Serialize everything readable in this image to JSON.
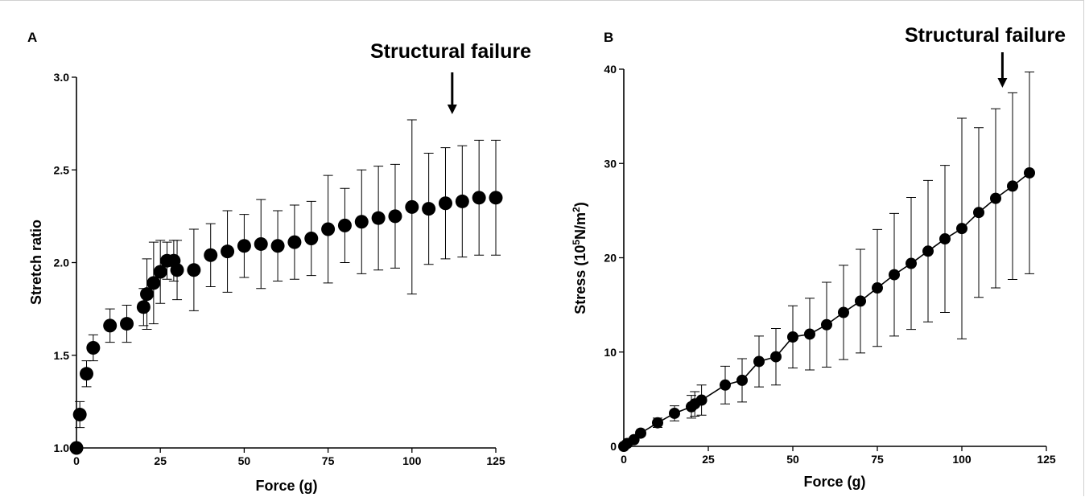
{
  "chart_data": [
    {
      "type": "scatter",
      "panel_label": "A",
      "xlabel": "Force (g)",
      "ylabel": "Stretch ratio",
      "xlim": [
        0,
        125
      ],
      "ylim": [
        1.0,
        3.0
      ],
      "xticks": [
        "0",
        "25",
        "50",
        "75",
        "100",
        "125"
      ],
      "yticks": [
        "1.0",
        "1.5",
        "2.0",
        "2.5",
        "3.0"
      ],
      "annotation": {
        "text": "Structural failure",
        "x": 112
      },
      "connect_points": false,
      "series": [
        {
          "x": [
            0,
            1,
            3,
            5,
            10,
            15,
            20,
            21,
            23,
            25,
            27,
            29,
            30,
            35,
            40,
            45,
            50,
            55,
            60,
            65,
            70,
            75,
            80,
            85,
            90,
            95,
            100,
            105,
            110,
            115,
            120,
            125
          ],
          "y": [
            1.0,
            1.18,
            1.4,
            1.54,
            1.66,
            1.67,
            1.76,
            1.83,
            1.89,
            1.95,
            2.01,
            2.01,
            1.96,
            1.96,
            2.04,
            2.06,
            2.09,
            2.1,
            2.09,
            2.11,
            2.13,
            2.18,
            2.2,
            2.22,
            2.24,
            2.25,
            2.3,
            2.29,
            2.32,
            2.33,
            2.35,
            2.35
          ],
          "err": [
            0,
            0.07,
            0.07,
            0.07,
            0.09,
            0.1,
            0.1,
            0.19,
            0.22,
            0.17,
            0.1,
            0.11,
            0.16,
            0.22,
            0.17,
            0.22,
            0.17,
            0.24,
            0.19,
            0.2,
            0.2,
            0.29,
            0.2,
            0.28,
            0.28,
            0.28,
            0.47,
            0.3,
            0.3,
            0.3,
            0.31,
            0.31
          ]
        }
      ]
    },
    {
      "type": "line",
      "panel_label": "B",
      "xlabel": "Force (g)",
      "ylabel_pre": "Stress (10",
      "ylabel_sup1": "5",
      "ylabel_mid": "N/m",
      "ylabel_sup2": "2",
      "ylabel_post": ")",
      "xlim": [
        0,
        125
      ],
      "ylim": [
        0,
        40
      ],
      "xticks": [
        "0",
        "25",
        "50",
        "75",
        "100",
        "125"
      ],
      "yticks": [
        "0",
        "10",
        "20",
        "30",
        "40"
      ],
      "annotation": {
        "text": "Structural failure",
        "x": 112
      },
      "connect_points": true,
      "series": [
        {
          "x": [
            0,
            1,
            3,
            5,
            10,
            15,
            20,
            21,
            23,
            30,
            35,
            40,
            45,
            50,
            55,
            60,
            65,
            70,
            75,
            80,
            85,
            90,
            95,
            100,
            105,
            110,
            115,
            120
          ],
          "y": [
            0,
            0.3,
            0.7,
            1.4,
            2.5,
            3.5,
            4.2,
            4.5,
            4.9,
            6.5,
            7.0,
            9.0,
            9.5,
            11.6,
            11.9,
            12.9,
            14.2,
            15.4,
            16.8,
            18.2,
            19.4,
            20.7,
            22.0,
            23.1,
            24.8,
            26.3,
            27.6,
            29.0
          ],
          "err": [
            0,
            0,
            0,
            0.3,
            0.5,
            0.8,
            1.2,
            1.3,
            1.6,
            2.0,
            2.3,
            2.7,
            3.0,
            3.3,
            3.8,
            4.5,
            5.0,
            5.5,
            6.2,
            6.5,
            7.0,
            7.5,
            7.8,
            11.7,
            9.0,
            9.5,
            9.9,
            10.7
          ]
        }
      ]
    }
  ]
}
